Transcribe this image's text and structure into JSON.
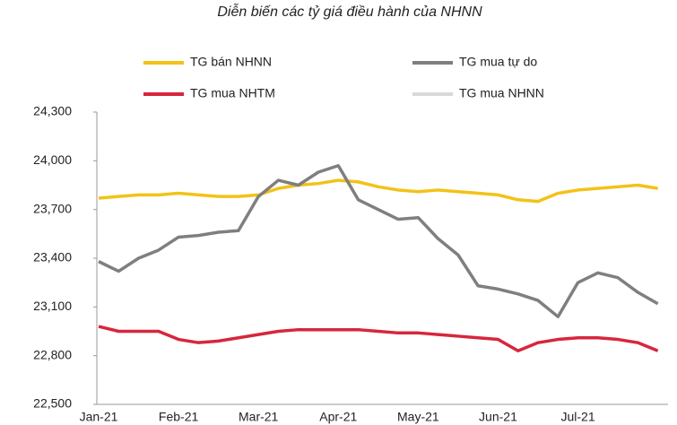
{
  "chart_data": {
    "type": "line",
    "title": "Diễn biến các tỷ giá điều hành của NHNN",
    "categories": [
      "Jan-21",
      null,
      null,
      null,
      "Feb-21",
      null,
      null,
      null,
      "Mar-21",
      null,
      null,
      null,
      "Apr-21",
      null,
      null,
      null,
      "May-21",
      null,
      null,
      null,
      "Jun-21",
      null,
      null,
      null,
      "Jul-21",
      null,
      null,
      null,
      null
    ],
    "series": [
      {
        "name": "TG bán NHNN",
        "color": "#f2c218",
        "values": [
          23770,
          23780,
          23790,
          23790,
          23800,
          23790,
          23780,
          23780,
          23790,
          23830,
          23850,
          23860,
          23880,
          23870,
          23840,
          23820,
          23810,
          23820,
          23810,
          23800,
          23790,
          23760,
          23750,
          23800,
          23820,
          23830,
          23840,
          23850,
          23830
        ]
      },
      {
        "name": "TG mua tự do",
        "color": "#7f7f7f",
        "values": [
          23380,
          23320,
          23400,
          23450,
          23530,
          23540,
          23560,
          23570,
          23780,
          23880,
          23850,
          23930,
          23970,
          23760,
          23700,
          23640,
          23650,
          23520,
          23420,
          23230,
          23210,
          23180,
          23140,
          23040,
          23250,
          23310,
          23280,
          23190,
          23120
        ]
      },
      {
        "name": "TG mua NHTM",
        "color": "#d7263d",
        "values": [
          22980,
          22950,
          22950,
          22950,
          22900,
          22880,
          22890,
          22910,
          22930,
          22950,
          22960,
          22960,
          22960,
          22960,
          22950,
          22940,
          22940,
          22930,
          22920,
          22910,
          22900,
          22830,
          22880,
          22900,
          22910,
          22910,
          22900,
          22880,
          22830
        ]
      },
      {
        "name": "TG mua NHNN",
        "color": "#d9d9d9",
        "values": [
          null,
          null,
          null,
          null,
          null,
          null,
          null,
          null,
          null,
          null,
          null,
          null,
          null,
          null,
          null,
          null,
          null,
          null,
          null,
          null,
          null,
          null,
          null,
          null,
          null,
          null,
          null,
          null,
          null
        ]
      }
    ],
    "ylim": [
      22500,
      24300
    ],
    "yticks": [
      {
        "value": 22500,
        "label": "22,500"
      },
      {
        "value": 22800,
        "label": "22,800"
      },
      {
        "value": 23100,
        "label": "23,100"
      },
      {
        "value": 23400,
        "label": "23,400"
      },
      {
        "value": 23700,
        "label": "23,700"
      },
      {
        "value": 24000,
        "label": "24,000"
      },
      {
        "value": 24300,
        "label": "24,300"
      }
    ],
    "grid": false
  }
}
